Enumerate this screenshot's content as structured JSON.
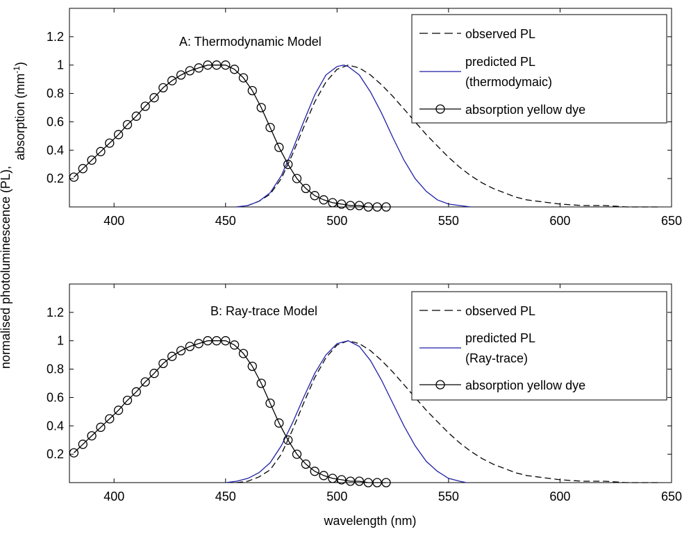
{
  "figure": {
    "shared_ylabel_lines": [
      "normalised photoluminescence (PL),",
      "absorption (mm"
    ],
    "ylabel_superscript": "-1",
    "ylabel_close": ")",
    "xlabel": "wavelength (nm)"
  },
  "chart_data": [
    {
      "type": "line",
      "panel": "A",
      "title": "A:  Thermodynamic Model",
      "xlim": [
        380,
        650
      ],
      "ylim": [
        0,
        1.4
      ],
      "xticks": [
        400,
        450,
        500,
        550,
        600,
        650
      ],
      "yticks": [
        0.2,
        0.4,
        0.6,
        0.8,
        1,
        1.2
      ],
      "grid": false,
      "legend_placement": "top-right",
      "series": [
        {
          "name": "observed PL",
          "style": "dashed",
          "color": "#000000",
          "x": [
            455,
            460,
            465,
            470,
            475,
            480,
            485,
            490,
            495,
            500,
            505,
            510,
            515,
            520,
            525,
            530,
            535,
            540,
            545,
            550,
            555,
            560,
            565,
            570,
            575,
            580,
            585,
            590,
            595,
            600,
            610,
            620,
            630,
            640,
            645
          ],
          "y": [
            0.0,
            0.01,
            0.04,
            0.09,
            0.2,
            0.37,
            0.56,
            0.74,
            0.88,
            0.97,
            1.0,
            0.98,
            0.93,
            0.86,
            0.78,
            0.69,
            0.6,
            0.51,
            0.43,
            0.35,
            0.28,
            0.22,
            0.17,
            0.13,
            0.1,
            0.07,
            0.05,
            0.04,
            0.03,
            0.02,
            0.01,
            0.01,
            0.0,
            0.0,
            0.0
          ]
        },
        {
          "name_lines": [
            "predicted PL",
            "(thermodymaic)"
          ],
          "style": "solid",
          "color": "#1f1fa6",
          "x": [
            455,
            460,
            465,
            470,
            475,
            480,
            485,
            490,
            495,
            500,
            503,
            505,
            510,
            515,
            520,
            525,
            530,
            535,
            540,
            545,
            550,
            555,
            560
          ],
          "y": [
            0.0,
            0.01,
            0.04,
            0.1,
            0.22,
            0.4,
            0.6,
            0.79,
            0.93,
            0.99,
            1.0,
            0.99,
            0.93,
            0.81,
            0.66,
            0.49,
            0.33,
            0.2,
            0.11,
            0.05,
            0.02,
            0.01,
            0.0
          ]
        },
        {
          "name": "absorption yellow dye",
          "style": "solid-circle-markers",
          "color": "#000000",
          "x": [
            382,
            386,
            390,
            394,
            398,
            402,
            406,
            410,
            414,
            418,
            422,
            426,
            430,
            434,
            438,
            442,
            446,
            450,
            454,
            458,
            462,
            466,
            470,
            474,
            478,
            482,
            486,
            490,
            494,
            498,
            502,
            506,
            510,
            514,
            518,
            522
          ],
          "y": [
            0.21,
            0.27,
            0.33,
            0.39,
            0.45,
            0.51,
            0.58,
            0.64,
            0.71,
            0.77,
            0.84,
            0.89,
            0.93,
            0.96,
            0.98,
            1.0,
            1.0,
            1.0,
            0.97,
            0.91,
            0.82,
            0.7,
            0.56,
            0.42,
            0.3,
            0.2,
            0.13,
            0.08,
            0.05,
            0.03,
            0.02,
            0.01,
            0.01,
            0.0,
            0.0,
            0.0
          ]
        }
      ]
    },
    {
      "type": "line",
      "panel": "B",
      "title": "B:  Ray-trace Model",
      "xlim": [
        380,
        650
      ],
      "ylim": [
        0,
        1.4
      ],
      "xticks": [
        400,
        450,
        500,
        550,
        600,
        650
      ],
      "yticks": [
        0.2,
        0.4,
        0.6,
        0.8,
        1,
        1.2
      ],
      "grid": false,
      "legend_placement": "top-right",
      "series": [
        {
          "name": "observed PL",
          "style": "dashed",
          "color": "#000000",
          "x": [
            455,
            460,
            465,
            470,
            475,
            480,
            485,
            490,
            495,
            500,
            505,
            510,
            515,
            520,
            525,
            530,
            535,
            540,
            545,
            550,
            555,
            560,
            565,
            570,
            575,
            580,
            585,
            590,
            595,
            600,
            610,
            620,
            630,
            640,
            645
          ],
          "y": [
            0.0,
            0.01,
            0.04,
            0.09,
            0.2,
            0.37,
            0.56,
            0.74,
            0.88,
            0.97,
            1.0,
            0.98,
            0.93,
            0.86,
            0.78,
            0.69,
            0.6,
            0.51,
            0.43,
            0.35,
            0.28,
            0.22,
            0.17,
            0.13,
            0.1,
            0.07,
            0.05,
            0.04,
            0.03,
            0.02,
            0.01,
            0.01,
            0.0,
            0.0,
            0.0
          ]
        },
        {
          "name_lines": [
            "predicted PL",
            "(Ray-trace)"
          ],
          "style": "solid",
          "color": "#1f1fa6",
          "x": [
            450,
            455,
            460,
            465,
            470,
            475,
            480,
            485,
            490,
            495,
            500,
            505,
            510,
            515,
            520,
            525,
            530,
            535,
            540,
            545,
            550,
            555,
            558
          ],
          "y": [
            0.0,
            0.01,
            0.03,
            0.07,
            0.14,
            0.26,
            0.42,
            0.6,
            0.77,
            0.9,
            0.98,
            1.0,
            0.96,
            0.86,
            0.72,
            0.56,
            0.4,
            0.26,
            0.15,
            0.08,
            0.03,
            0.01,
            0.0
          ]
        },
        {
          "name": "absorption yellow dye",
          "style": "solid-circle-markers",
          "color": "#000000",
          "x": [
            382,
            386,
            390,
            394,
            398,
            402,
            406,
            410,
            414,
            418,
            422,
            426,
            430,
            434,
            438,
            442,
            446,
            450,
            454,
            458,
            462,
            466,
            470,
            474,
            478,
            482,
            486,
            490,
            494,
            498,
            502,
            506,
            510,
            514,
            518,
            522
          ],
          "y": [
            0.21,
            0.27,
            0.33,
            0.39,
            0.45,
            0.51,
            0.58,
            0.64,
            0.71,
            0.77,
            0.84,
            0.89,
            0.93,
            0.96,
            0.98,
            1.0,
            1.0,
            1.0,
            0.97,
            0.91,
            0.82,
            0.7,
            0.56,
            0.42,
            0.3,
            0.2,
            0.13,
            0.08,
            0.05,
            0.03,
            0.02,
            0.01,
            0.01,
            0.0,
            0.0,
            0.0
          ]
        }
      ]
    }
  ]
}
